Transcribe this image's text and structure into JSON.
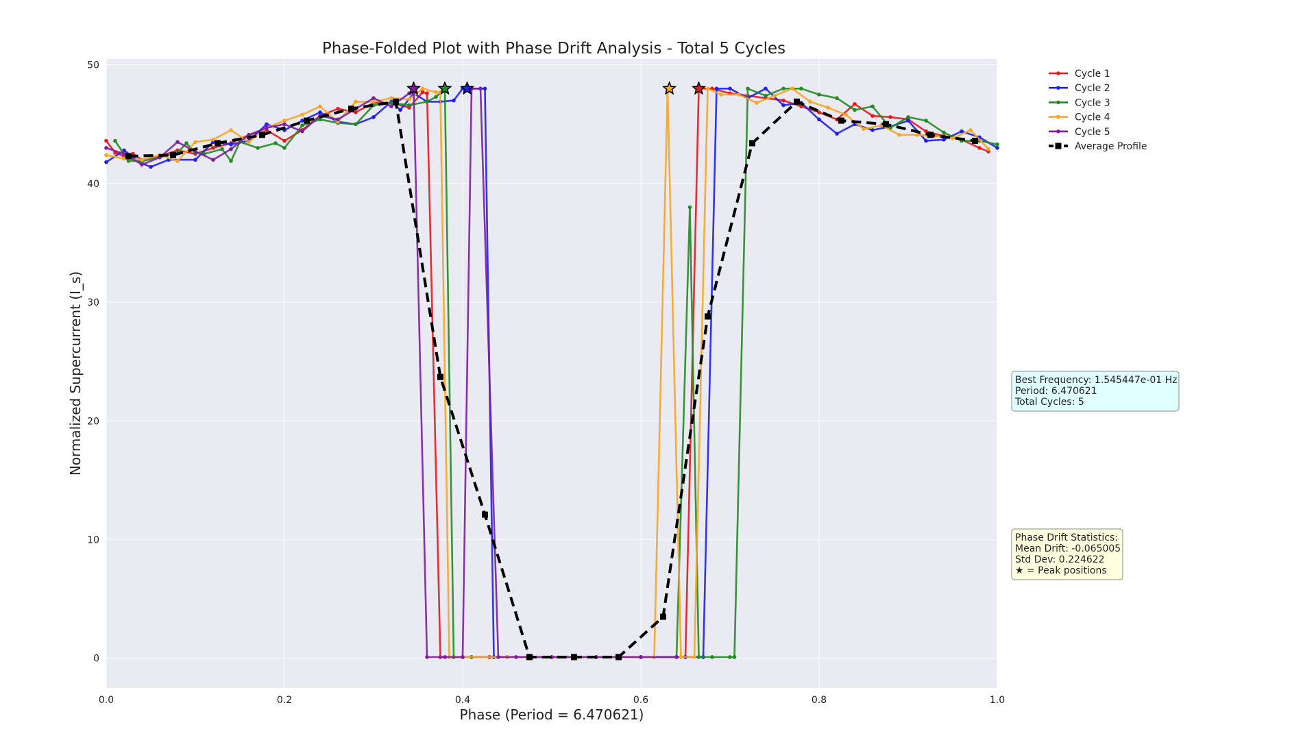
{
  "chart_data": {
    "type": "line",
    "title": "Phase-Folded Plot with Phase Drift Analysis - Total 5 Cycles",
    "xlabel": "Phase (Period = 6.470621)",
    "ylabel": "Normalized Supercurrent (I_s)",
    "xlim": [
      0,
      1
    ],
    "ylim": [
      -2.5,
      50.5
    ],
    "xticks": [
      0.0,
      0.2,
      0.4,
      0.6,
      0.8,
      1.0
    ],
    "xtick_labels": [
      "0.0",
      "0.2",
      "0.4",
      "0.6",
      "0.8",
      "1.0"
    ],
    "yticks": [
      0,
      10,
      20,
      30,
      40,
      50
    ],
    "ytick_labels": [
      "0",
      "10",
      "20",
      "30",
      "40",
      "50"
    ],
    "grid": true,
    "legend_position": "top-right",
    "series": [
      {
        "name": "Cycle 1",
        "color": "#e41a1c",
        "points": [
          [
            0.0,
            43.6
          ],
          [
            0.01,
            42.6
          ],
          [
            0.02,
            42.3
          ],
          [
            0.03,
            42.5
          ],
          [
            0.04,
            42.0
          ],
          [
            0.06,
            42.3
          ],
          [
            0.08,
            42.8
          ],
          [
            0.1,
            42.5
          ],
          [
            0.12,
            43.0
          ],
          [
            0.14,
            43.4
          ],
          [
            0.16,
            44.1
          ],
          [
            0.18,
            44.5
          ],
          [
            0.2,
            43.6
          ],
          [
            0.22,
            44.5
          ],
          [
            0.24,
            45.7
          ],
          [
            0.26,
            46.3
          ],
          [
            0.28,
            46.0
          ],
          [
            0.3,
            46.8
          ],
          [
            0.32,
            46.8
          ],
          [
            0.34,
            46.4
          ],
          [
            0.355,
            47.7
          ],
          [
            0.36,
            47.6
          ],
          [
            0.375,
            0.1
          ],
          [
            0.39,
            0.1
          ],
          [
            0.41,
            0.1
          ],
          [
            0.43,
            0.1
          ],
          [
            0.45,
            0.1
          ],
          [
            0.5,
            0.1
          ],
          [
            0.55,
            0.1
          ],
          [
            0.6,
            0.1
          ],
          [
            0.65,
            0.1
          ],
          [
            0.665,
            48.0
          ],
          [
            0.68,
            48.0
          ],
          [
            0.7,
            47.6
          ],
          [
            0.72,
            47.4
          ],
          [
            0.74,
            47.2
          ],
          [
            0.76,
            47.0
          ],
          [
            0.78,
            46.5
          ],
          [
            0.8,
            46.0
          ],
          [
            0.82,
            45.4
          ],
          [
            0.84,
            46.7
          ],
          [
            0.86,
            45.7
          ],
          [
            0.88,
            45.6
          ],
          [
            0.9,
            45.4
          ],
          [
            0.92,
            44.4
          ],
          [
            0.94,
            44.0
          ],
          [
            0.96,
            43.7
          ],
          [
            0.98,
            43.0
          ],
          [
            0.99,
            42.7
          ]
        ]
      },
      {
        "name": "Cycle 2",
        "color": "#1f1fe8",
        "points": [
          [
            0.0,
            41.8
          ],
          [
            0.02,
            42.8
          ],
          [
            0.04,
            41.7
          ],
          [
            0.05,
            41.4
          ],
          [
            0.07,
            42.0
          ],
          [
            0.1,
            42.0
          ],
          [
            0.12,
            43.5
          ],
          [
            0.14,
            43.3
          ],
          [
            0.16,
            43.6
          ],
          [
            0.18,
            45.0
          ],
          [
            0.2,
            44.5
          ],
          [
            0.22,
            45.3
          ],
          [
            0.24,
            46.0
          ],
          [
            0.26,
            45.2
          ],
          [
            0.28,
            45.0
          ],
          [
            0.3,
            45.6
          ],
          [
            0.32,
            46.9
          ],
          [
            0.33,
            46.2
          ],
          [
            0.345,
            47.6
          ],
          [
            0.36,
            46.9
          ],
          [
            0.375,
            46.9
          ],
          [
            0.39,
            47.0
          ],
          [
            0.4,
            48.0
          ],
          [
            0.42,
            48.0
          ],
          [
            0.425,
            48.0
          ],
          [
            0.435,
            0.1
          ],
          [
            0.45,
            0.1
          ],
          [
            0.5,
            0.1
          ],
          [
            0.55,
            0.1
          ],
          [
            0.6,
            0.1
          ],
          [
            0.65,
            0.1
          ],
          [
            0.67,
            0.1
          ],
          [
            0.685,
            48.0
          ],
          [
            0.7,
            48.0
          ],
          [
            0.72,
            47.2
          ],
          [
            0.74,
            48.0
          ],
          [
            0.76,
            46.6
          ],
          [
            0.78,
            46.8
          ],
          [
            0.8,
            45.4
          ],
          [
            0.82,
            44.2
          ],
          [
            0.84,
            45.0
          ],
          [
            0.86,
            44.5
          ],
          [
            0.88,
            44.8
          ],
          [
            0.9,
            45.3
          ],
          [
            0.92,
            43.6
          ],
          [
            0.94,
            43.7
          ],
          [
            0.96,
            44.4
          ],
          [
            0.98,
            43.9
          ],
          [
            1.0,
            43.0
          ]
        ]
      },
      {
        "name": "Cycle 3",
        "color": "#228b22",
        "points": [
          [
            0.01,
            43.6
          ],
          [
            0.025,
            41.9
          ],
          [
            0.04,
            41.9
          ],
          [
            0.06,
            42.2
          ],
          [
            0.08,
            42.6
          ],
          [
            0.09,
            43.4
          ],
          [
            0.1,
            42.6
          ],
          [
            0.11,
            42.5
          ],
          [
            0.13,
            42.9
          ],
          [
            0.14,
            41.9
          ],
          [
            0.15,
            43.5
          ],
          [
            0.17,
            43.0
          ],
          [
            0.19,
            43.4
          ],
          [
            0.2,
            43.0
          ],
          [
            0.22,
            44.9
          ],
          [
            0.24,
            45.4
          ],
          [
            0.26,
            45.1
          ],
          [
            0.28,
            45.0
          ],
          [
            0.3,
            46.6
          ],
          [
            0.32,
            46.8
          ],
          [
            0.34,
            46.6
          ],
          [
            0.36,
            46.9
          ],
          [
            0.37,
            47.3
          ],
          [
            0.38,
            48.0
          ],
          [
            0.39,
            0.1
          ],
          [
            0.41,
            0.1
          ],
          [
            0.45,
            0.1
          ],
          [
            0.5,
            0.1
          ],
          [
            0.55,
            0.1
          ],
          [
            0.6,
            0.1
          ],
          [
            0.64,
            0.1
          ],
          [
            0.655,
            38.0
          ],
          [
            0.665,
            0.1
          ],
          [
            0.68,
            0.1
          ],
          [
            0.7,
            0.1
          ],
          [
            0.705,
            0.1
          ],
          [
            0.72,
            48.0
          ],
          [
            0.74,
            47.4
          ],
          [
            0.76,
            48.0
          ],
          [
            0.78,
            48.0
          ],
          [
            0.8,
            47.5
          ],
          [
            0.82,
            47.2
          ],
          [
            0.84,
            46.2
          ],
          [
            0.86,
            46.5
          ],
          [
            0.88,
            44.7
          ],
          [
            0.9,
            45.6
          ],
          [
            0.92,
            45.3
          ],
          [
            0.94,
            44.3
          ],
          [
            0.96,
            43.6
          ],
          [
            0.98,
            43.6
          ],
          [
            1.0,
            43.3
          ]
        ]
      },
      {
        "name": "Cycle 4",
        "color": "#f5a623",
        "points": [
          [
            0.0,
            42.4
          ],
          [
            0.02,
            42.1
          ],
          [
            0.04,
            42.0
          ],
          [
            0.06,
            42.4
          ],
          [
            0.08,
            41.9
          ],
          [
            0.1,
            43.5
          ],
          [
            0.12,
            43.7
          ],
          [
            0.14,
            44.5
          ],
          [
            0.16,
            43.5
          ],
          [
            0.18,
            44.7
          ],
          [
            0.2,
            45.3
          ],
          [
            0.22,
            45.8
          ],
          [
            0.24,
            46.5
          ],
          [
            0.26,
            45.2
          ],
          [
            0.28,
            46.9
          ],
          [
            0.3,
            46.9
          ],
          [
            0.32,
            47.2
          ],
          [
            0.34,
            47.1
          ],
          [
            0.355,
            48.0
          ],
          [
            0.37,
            47.7
          ],
          [
            0.375,
            47.7
          ],
          [
            0.385,
            0.1
          ],
          [
            0.4,
            0.1
          ],
          [
            0.45,
            0.1
          ],
          [
            0.5,
            0.1
          ],
          [
            0.55,
            0.1
          ],
          [
            0.6,
            0.1
          ],
          [
            0.615,
            0.1
          ],
          [
            0.63,
            48.0
          ],
          [
            0.645,
            0.1
          ],
          [
            0.66,
            0.1
          ],
          [
            0.675,
            48.0
          ],
          [
            0.69,
            47.5
          ],
          [
            0.71,
            47.5
          ],
          [
            0.73,
            46.8
          ],
          [
            0.75,
            47.4
          ],
          [
            0.77,
            48.0
          ],
          [
            0.79,
            46.9
          ],
          [
            0.81,
            46.4
          ],
          [
            0.83,
            45.8
          ],
          [
            0.85,
            44.6
          ],
          [
            0.87,
            44.9
          ],
          [
            0.89,
            44.1
          ],
          [
            0.91,
            44.1
          ],
          [
            0.93,
            44.0
          ],
          [
            0.95,
            43.8
          ],
          [
            0.97,
            44.5
          ],
          [
            0.99,
            42.9
          ]
        ]
      },
      {
        "name": "Cycle 5",
        "color": "#7b1fa2",
        "points": [
          [
            0.0,
            43.0
          ],
          [
            0.02,
            42.5
          ],
          [
            0.04,
            41.6
          ],
          [
            0.06,
            42.2
          ],
          [
            0.08,
            43.5
          ],
          [
            0.1,
            42.7
          ],
          [
            0.12,
            42.0
          ],
          [
            0.14,
            42.9
          ],
          [
            0.16,
            44.1
          ],
          [
            0.18,
            44.7
          ],
          [
            0.2,
            45.0
          ],
          [
            0.22,
            44.4
          ],
          [
            0.24,
            45.7
          ],
          [
            0.26,
            45.4
          ],
          [
            0.28,
            46.3
          ],
          [
            0.3,
            47.2
          ],
          [
            0.32,
            46.5
          ],
          [
            0.34,
            47.6
          ],
          [
            0.345,
            48.0
          ],
          [
            0.36,
            0.1
          ],
          [
            0.38,
            0.1
          ],
          [
            0.4,
            0.1
          ],
          [
            0.41,
            48.0
          ],
          [
            0.42,
            48.0
          ],
          [
            0.44,
            0.1
          ],
          [
            0.46,
            0.1
          ],
          [
            0.5,
            0.1
          ],
          [
            0.55,
            0.1
          ],
          [
            0.6,
            0.1
          ],
          [
            0.64,
            0.1
          ]
        ]
      },
      {
        "name": "Average Profile",
        "color": "#000000",
        "dashed": true,
        "points": [
          [
            0.025,
            42.3
          ],
          [
            0.075,
            42.4
          ],
          [
            0.125,
            43.4
          ],
          [
            0.175,
            44.1
          ],
          [
            0.225,
            45.3
          ],
          [
            0.275,
            46.3
          ],
          [
            0.325,
            46.9
          ],
          [
            0.375,
            23.7
          ],
          [
            0.425,
            12.1
          ],
          [
            0.475,
            0.1
          ],
          [
            0.525,
            0.1
          ],
          [
            0.575,
            0.1
          ],
          [
            0.625,
            3.5
          ],
          [
            0.675,
            28.8
          ],
          [
            0.725,
            43.4
          ],
          [
            0.775,
            46.9
          ],
          [
            0.825,
            45.3
          ],
          [
            0.875,
            45.0
          ],
          [
            0.925,
            44.1
          ],
          [
            0.975,
            43.6
          ]
        ]
      }
    ],
    "peaks": [
      {
        "x": 0.345,
        "y": 48.0,
        "color": "#7b1fa2"
      },
      {
        "x": 0.38,
        "y": 48.0,
        "color": "#228b22"
      },
      {
        "x": 0.405,
        "y": 48.0,
        "color": "#1f1fe8"
      },
      {
        "x": 0.632,
        "y": 48.0,
        "color": "#f5a623"
      },
      {
        "x": 0.665,
        "y": 48.0,
        "color": "#e41a1c"
      }
    ],
    "info_box": {
      "lines": [
        "Best Frequency: 1.545447e-01 Hz",
        "Period: 6.470621",
        "Total Cycles: 5"
      ],
      "background": "#e0ffff"
    },
    "drift_box": {
      "lines": [
        "Phase Drift Statistics:",
        "Mean Drift: -0.065005",
        "Std Dev: 0.224622",
        "★ = Peak positions"
      ],
      "background": "#ffffe0"
    }
  }
}
